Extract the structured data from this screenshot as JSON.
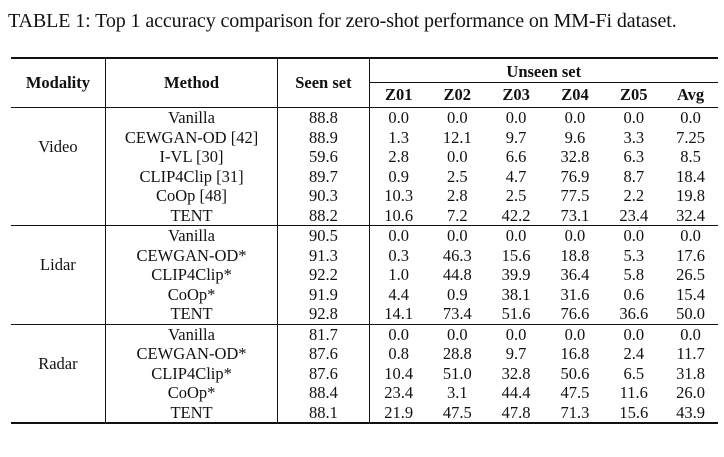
{
  "caption": "TABLE 1: Top 1 accuracy comparison for zero-shot performance on MM-Fi dataset.",
  "header": {
    "modality": "Modality",
    "method": "Method",
    "seen": "Seen set",
    "unseen": "Unseen set",
    "cols": [
      "Z01",
      "Z02",
      "Z03",
      "Z04",
      "Z05",
      "Avg"
    ]
  },
  "groups": [
    {
      "modality": "Video",
      "rows": [
        {
          "method": "Vanilla",
          "seen": "88.8",
          "vals": [
            "0.0",
            "0.0",
            "0.0",
            "0.0",
            "0.0",
            "0.0"
          ],
          "bold": [
            false,
            false,
            false,
            false,
            false,
            false
          ],
          "bold_method": false
        },
        {
          "method": "CEWGAN-OD [42]",
          "seen": "88.9",
          "vals": [
            "1.3",
            "12.1",
            "9.7",
            "9.6",
            "3.3",
            "7.25"
          ],
          "bold": [
            false,
            true,
            false,
            false,
            false,
            false
          ],
          "bold_method": false
        },
        {
          "method": "I-VL [30]",
          "seen": "59.6",
          "vals": [
            "2.8",
            "0.0",
            "6.6",
            "32.8",
            "6.3",
            "8.5"
          ],
          "bold": [
            false,
            false,
            false,
            false,
            false,
            false
          ],
          "bold_method": false
        },
        {
          "method": "CLIP4Clip [31]",
          "seen": "89.7",
          "vals": [
            "0.9",
            "2.5",
            "4.7",
            "76.9",
            "8.7",
            "18.4"
          ],
          "bold": [
            false,
            false,
            false,
            false,
            false,
            false
          ],
          "bold_method": false
        },
        {
          "method": "CoOp [48]",
          "seen": "90.3",
          "vals": [
            "10.3",
            "2.8",
            "2.5",
            "77.5",
            "2.2",
            "19.8"
          ],
          "bold": [
            false,
            false,
            false,
            true,
            false,
            false
          ],
          "bold_method": false
        },
        {
          "method": "TENT",
          "seen": "88.2",
          "vals": [
            "10.6",
            "7.2",
            "42.2",
            "73.1",
            "23.4",
            "32.4"
          ],
          "bold": [
            true,
            false,
            true,
            false,
            true,
            true
          ],
          "bold_method": true
        }
      ]
    },
    {
      "modality": "Lidar",
      "rows": [
        {
          "method": "Vanilla",
          "seen": "90.5",
          "vals": [
            "0.0",
            "0.0",
            "0.0",
            "0.0",
            "0.0",
            "0.0"
          ],
          "bold": [
            false,
            false,
            false,
            false,
            false,
            false
          ],
          "bold_method": false
        },
        {
          "method": "CEWGAN-OD*",
          "seen": "91.3",
          "vals": [
            "0.3",
            "46.3",
            "15.6",
            "18.8",
            "5.3",
            "17.6"
          ],
          "bold": [
            false,
            false,
            false,
            false,
            false,
            false
          ],
          "bold_method": false
        },
        {
          "method": "CLIP4Clip*",
          "seen": "92.2",
          "vals": [
            "1.0",
            "44.8",
            "39.9",
            "36.4",
            "5.8",
            "26.5"
          ],
          "bold": [
            false,
            false,
            false,
            false,
            false,
            false
          ],
          "bold_method": false
        },
        {
          "method": "CoOp*",
          "seen": "91.9",
          "vals": [
            "4.4",
            "0.9",
            "38.1",
            "31.6",
            "0.6",
            "15.4"
          ],
          "bold": [
            false,
            false,
            false,
            false,
            false,
            false
          ],
          "bold_method": false
        },
        {
          "method": "TENT",
          "seen": "92.8",
          "vals": [
            "14.1",
            "73.4",
            "51.6",
            "76.6",
            "36.6",
            "50.0"
          ],
          "bold": [
            true,
            true,
            true,
            true,
            true,
            true
          ],
          "bold_method": true
        }
      ]
    },
    {
      "modality": "Radar",
      "rows": [
        {
          "method": "Vanilla",
          "seen": "81.7",
          "vals": [
            "0.0",
            "0.0",
            "0.0",
            "0.0",
            "0.0",
            "0.0"
          ],
          "bold": [
            false,
            false,
            false,
            false,
            false,
            false
          ],
          "bold_method": false
        },
        {
          "method": "CEWGAN-OD*",
          "seen": "87.6",
          "vals": [
            "0.8",
            "28.8",
            "9.7",
            "16.8",
            "2.4",
            "11.7"
          ],
          "bold": [
            false,
            false,
            false,
            false,
            false,
            false
          ],
          "bold_method": false
        },
        {
          "method": "CLIP4Clip*",
          "seen": "87.6",
          "vals": [
            "10.4",
            "51.0",
            "32.8",
            "50.6",
            "6.5",
            "31.8"
          ],
          "bold": [
            false,
            true,
            false,
            false,
            false,
            false
          ],
          "bold_method": false
        },
        {
          "method": "CoOp*",
          "seen": "88.4",
          "vals": [
            "23.4",
            "3.1",
            "44.4",
            "47.5",
            "11.6",
            "26.0"
          ],
          "bold": [
            true,
            false,
            false,
            false,
            false,
            false
          ],
          "bold_method": false
        },
        {
          "method": "TENT",
          "seen": "88.1",
          "vals": [
            "21.9",
            "47.5",
            "47.8",
            "71.3",
            "15.6",
            "43.9"
          ],
          "bold": [
            false,
            false,
            true,
            true,
            true,
            true
          ],
          "bold_method": true
        }
      ]
    }
  ]
}
